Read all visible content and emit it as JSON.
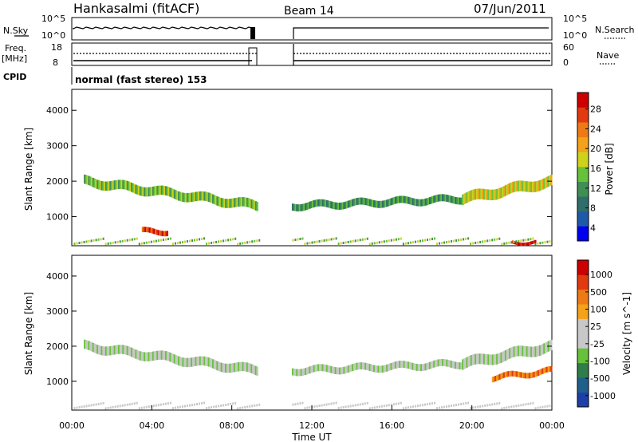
{
  "header": {
    "title": "Hankasalmi (fitACF)",
    "beam": "Beam 14",
    "date": "07/Jun/2011"
  },
  "top_panels": {
    "nsky_label": "N.Sky",
    "nsky_ticks": [
      "10^5",
      "10^0"
    ],
    "nsearch_label": "N.Search",
    "nsearch_ticks": [
      "10^5",
      "10^0"
    ],
    "freq_label_1": "Freq.",
    "freq_label_2": "[MHz]",
    "freq_ticks": [
      "18",
      "8"
    ],
    "nave_label": "Nave",
    "nave_ticks": [
      "60",
      "0"
    ],
    "cpid_label": "CPID",
    "cpid_text": "normal (fast stereo) 153"
  },
  "colors": {
    "power": [
      "#0000ee",
      "#1e5aa8",
      "#2f6e6a",
      "#3f8f55",
      "#66c23a",
      "#cfd21c",
      "#f4a21a",
      "#ee7a16",
      "#e23a10",
      "#cc0000"
    ],
    "velocity": [
      "#1c3fa8",
      "#1f5f8a",
      "#2f7d4a",
      "#66c23a",
      "#c8c8c8",
      "#c8c8c8",
      "#f4a21a",
      "#ee7a16",
      "#e23a10",
      "#cc0000"
    ]
  },
  "chart_data": [
    {
      "type": "heatmap",
      "name": "power",
      "ylabel": "Slant Range [km]",
      "yticks": [
        "4000",
        "3000",
        "2000",
        "1000"
      ],
      "ylim": [
        180,
        4590
      ],
      "xlim": [
        0,
        24
      ],
      "colorbar_label": "Power [dB]",
      "colorbar_ticks": [
        "28",
        "24",
        "20",
        "16",
        "12",
        "8",
        "4"
      ],
      "data_gaps_hours": [
        [
          9.4,
          11.0
        ]
      ],
      "bands": [
        {
          "from": 0.6,
          "to": 9.3,
          "range_start": 2000,
          "range_end": 1300,
          "width_km": 260,
          "level": 4
        },
        {
          "from": 11.0,
          "to": 19.5,
          "range_start": 1300,
          "range_end": 1500,
          "width_km": 200,
          "level": 3
        },
        {
          "from": 19.5,
          "to": 24.0,
          "range_start": 1500,
          "range_end": 2000,
          "width_km": 300,
          "level": 5
        },
        {
          "from": 3.5,
          "to": 4.8,
          "range_start": 580,
          "range_end": 580,
          "width_km": 150,
          "level": 8
        },
        {
          "from": 22.0,
          "to": 23.2,
          "range_start": 280,
          "range_end": 280,
          "width_km": 90,
          "level": 9
        }
      ]
    },
    {
      "type": "heatmap",
      "name": "velocity",
      "ylabel": "Slant Range [km]",
      "yticks": [
        "4000",
        "3000",
        "2000",
        "1000"
      ],
      "ylim": [
        180,
        4590
      ],
      "xlim": [
        0,
        24
      ],
      "colorbar_label": "Velocity [m s^-1]",
      "colorbar_ticks": [
        "1000",
        "500",
        "100",
        "25",
        "-25",
        "-100",
        "-500",
        "-1000"
      ],
      "data_gaps_hours": [
        [
          9.4,
          11.0
        ]
      ],
      "bands": [
        {
          "from": 0.6,
          "to": 9.3,
          "range_start": 2000,
          "range_end": 1300,
          "width_km": 260,
          "level": 4
        },
        {
          "from": 11.0,
          "to": 19.5,
          "range_start": 1300,
          "range_end": 1500,
          "width_km": 200,
          "level": 4
        },
        {
          "from": 19.5,
          "to": 24.0,
          "range_start": 1500,
          "range_end": 2000,
          "width_km": 300,
          "level": 4
        },
        {
          "from": 21.0,
          "to": 24.0,
          "range_start": 1100,
          "range_end": 1300,
          "width_km": 160,
          "level": 7
        }
      ]
    }
  ],
  "xaxis": {
    "label": "Time UT",
    "ticks": [
      "00:00",
      "04:00",
      "08:00",
      "12:00",
      "16:00",
      "20:00",
      "00:00"
    ]
  }
}
